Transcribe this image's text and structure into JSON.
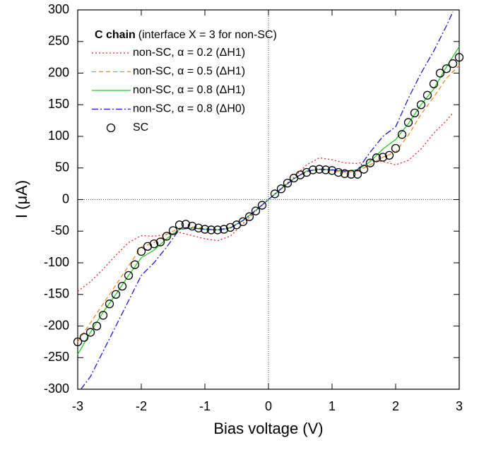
{
  "chart_data": {
    "type": "line",
    "legend_title": "C chain",
    "legend_subtitle": "(interface X = 3 for non-SC)",
    "xlabel": "Bias voltage (V)",
    "ylabel": "I (μA)",
    "xlim": [
      -3,
      3
    ],
    "ylim": [
      -300,
      300
    ],
    "xticks": [
      -3,
      -2,
      -1,
      0,
      1,
      2,
      3
    ],
    "yticks": [
      -300,
      -250,
      -200,
      -150,
      -100,
      -50,
      0,
      50,
      100,
      150,
      200,
      250,
      300
    ],
    "legend": "upper left",
    "series": [
      {
        "name": "non-SC, α = 0.2 (ΔH1)",
        "color": "#e8231e",
        "style": "dotted",
        "x": [
          -3,
          -2.8,
          -2.6,
          -2.4,
          -2.2,
          -2,
          -1.8,
          -1.6,
          -1.4,
          -1.2,
          -1,
          -0.8,
          -0.6,
          -0.4,
          -0.2,
          0,
          0.2,
          0.4,
          0.6,
          0.8,
          1,
          1.2,
          1.4,
          1.6,
          1.8,
          2,
          2.2,
          2.4,
          2.6,
          2.8,
          2.9
        ],
        "values": [
          -145,
          -130,
          -110,
          -88,
          -68,
          -57,
          -58,
          -55,
          -52,
          -57,
          -62,
          -65,
          -58,
          -38,
          -18,
          0,
          18,
          35,
          55,
          66,
          63,
          58,
          57,
          62,
          60,
          55,
          62,
          80,
          105,
          125,
          137
        ]
      },
      {
        "name": "non-SC, α = 0.5 (ΔH1)",
        "color": "#f08a1c",
        "style": "dashed",
        "x": [
          -3,
          -2.8,
          -2.6,
          -2.4,
          -2.2,
          -2,
          -1.8,
          -1.6,
          -1.4,
          -1.2,
          -1,
          -0.8,
          -0.6,
          -0.4,
          -0.2,
          0,
          0.2,
          0.4,
          0.6,
          0.8,
          1,
          1.2,
          1.4,
          1.6,
          1.8,
          2,
          2.2,
          2.4,
          2.6,
          2.8,
          3
        ],
        "values": [
          -225,
          -195,
          -165,
          -135,
          -105,
          -75,
          -68,
          -55,
          -45,
          -43,
          -46,
          -48,
          -44,
          -33,
          -17,
          0,
          17,
          33,
          44,
          48,
          46,
          43,
          45,
          55,
          67,
          75,
          102,
          135,
          162,
          192,
          212
        ]
      },
      {
        "name": "non-SC, α = 0.8 (ΔH1)",
        "color": "#22cc22",
        "style": "solid",
        "x": [
          -3,
          -2.8,
          -2.6,
          -2.4,
          -2.2,
          -2,
          -1.8,
          -1.6,
          -1.4,
          -1.2,
          -1,
          -0.8,
          -0.6,
          -0.4,
          -0.2,
          0,
          0.2,
          0.4,
          0.6,
          0.8,
          1,
          1.2,
          1.4,
          1.6,
          1.8,
          2,
          2.2,
          2.4,
          2.6,
          2.8,
          3
        ],
        "values": [
          -245,
          -210,
          -178,
          -150,
          -120,
          -92,
          -80,
          -62,
          -47,
          -45,
          -47,
          -48,
          -45,
          -33,
          -17,
          0,
          17,
          33,
          45,
          48,
          47,
          45,
          47,
          60,
          80,
          95,
          120,
          150,
          175,
          210,
          242
        ]
      },
      {
        "name": "non-SC, α = 0.8 (ΔH0)",
        "color": "#1a1ad0",
        "style": "dashdot",
        "x": [
          -2.95,
          -2.8,
          -2.6,
          -2.4,
          -2.2,
          -2,
          -1.8,
          -1.6,
          -1.4,
          -1.2,
          -1,
          -0.8,
          -0.6,
          -0.4,
          -0.2,
          0,
          0.2,
          0.4,
          0.6,
          0.8,
          1,
          1.2,
          1.4,
          1.6,
          1.8,
          2,
          2.2,
          2.4,
          2.6,
          2.8,
          2.9
        ],
        "values": [
          -300,
          -280,
          -240,
          -200,
          -160,
          -120,
          -100,
          -75,
          -47,
          -45,
          -47,
          -48,
          -45,
          -33,
          -17,
          0,
          17,
          33,
          45,
          48,
          47,
          45,
          47,
          75,
          100,
          115,
          160,
          200,
          235,
          275,
          297
        ]
      },
      {
        "name": "SC",
        "color": "#000000",
        "style": "markers",
        "x": [
          -3,
          -2.9,
          -2.8,
          -2.7,
          -2.6,
          -2.5,
          -2.4,
          -2.3,
          -2.2,
          -2.1,
          -2,
          -1.9,
          -1.8,
          -1.7,
          -1.6,
          -1.5,
          -1.4,
          -1.3,
          -1.2,
          -1.1,
          -1,
          -0.9,
          -0.8,
          -0.7,
          -0.6,
          -0.5,
          -0.4,
          -0.3,
          -0.2,
          -0.1,
          0.1,
          0.2,
          0.3,
          0.4,
          0.5,
          0.6,
          0.7,
          0.8,
          0.9,
          1,
          1.1,
          1.2,
          1.3,
          1.4,
          1.5,
          1.6,
          1.7,
          1.8,
          1.9,
          2,
          2.1,
          2.2,
          2.3,
          2.4,
          2.5,
          2.6,
          2.7,
          2.8,
          2.9,
          3
        ],
        "values": [
          -225,
          -218,
          -210,
          -200,
          -183,
          -165,
          -150,
          -137,
          -120,
          -103,
          -82,
          -74,
          -70,
          -67,
          -58,
          -49,
          -40,
          -39,
          -42,
          -45,
          -47,
          -48,
          -48,
          -47,
          -44,
          -40,
          -35,
          -27,
          -18,
          -9,
          9,
          17,
          26,
          34,
          39,
          43,
          47,
          48,
          47,
          46,
          43,
          41,
          40,
          40,
          48,
          58,
          66,
          67,
          70,
          81,
          103,
          122,
          137,
          150,
          165,
          183,
          200,
          207,
          215,
          225
        ]
      }
    ]
  }
}
